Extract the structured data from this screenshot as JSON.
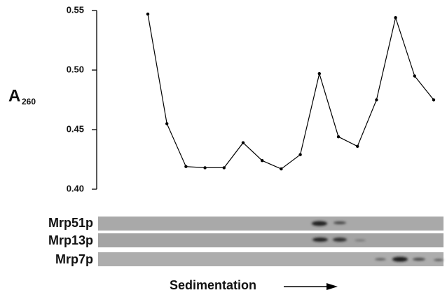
{
  "chart_data": {
    "type": "line",
    "ylabel": {
      "main": "A",
      "sub": "260"
    },
    "xlabel": "Sedimentation",
    "categories": [
      null,
      null,
      null,
      null,
      null,
      null,
      null,
      null,
      null,
      null,
      null,
      null,
      null,
      null,
      null,
      null
    ],
    "series": [
      {
        "color": "#000000",
        "values": [
          0.547,
          0.455,
          0.419,
          0.418,
          0.418,
          0.439,
          0.424,
          0.417,
          0.429,
          0.497,
          0.444,
          0.436,
          0.475,
          0.544,
          0.495,
          0.475
        ]
      }
    ],
    "ylim": [
      0.4,
      0.55
    ],
    "yticks": [
      {
        "value": 0.4,
        "label": "0.40"
      },
      0.45,
      {
        "value": 0.5,
        "label": "0.50"
      },
      0.55
    ],
    "blots": [
      {
        "label": "Mrp51p"
      },
      {
        "label": "Mrp13p"
      },
      {
        "label": "Mrp7p"
      }
    ]
  }
}
